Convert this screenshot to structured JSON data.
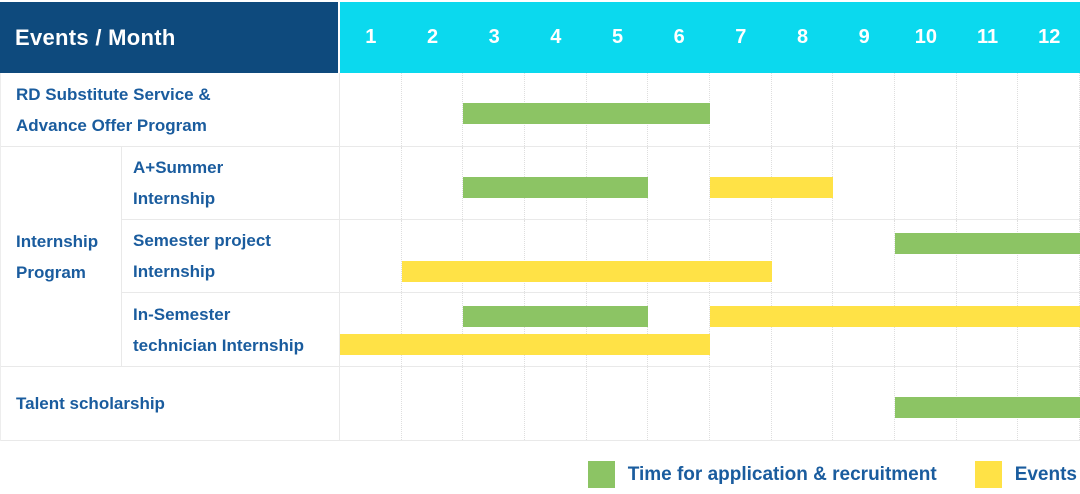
{
  "header": {
    "corner_label": "Events / Month",
    "months": [
      "1",
      "2",
      "3",
      "4",
      "5",
      "6",
      "7",
      "8",
      "9",
      "10",
      "11",
      "12"
    ]
  },
  "colors": {
    "header_navy": "#0E4A7D",
    "header_cyan": "#0BD9EE",
    "application_green": "#8CC464",
    "event_yellow": "#FFE246",
    "label_blue": "#1A5C9E",
    "grid_line": "#E9E9E9"
  },
  "legend": {
    "items": [
      {
        "swatch": "application_green",
        "label": "Time for application & recruitment"
      },
      {
        "swatch": "event_yellow",
        "label": "Events"
      }
    ]
  },
  "chart_data": {
    "type": "gantt",
    "x_unit": "month",
    "x_ticks": [
      1,
      2,
      3,
      4,
      5,
      6,
      7,
      8,
      9,
      10,
      11,
      12
    ],
    "x_range": [
      1,
      12
    ],
    "grid": true,
    "legend_position": "bottom-right",
    "bar_kinds": {
      "application": "Time for application & recruitment",
      "event": "Events"
    },
    "group_label_lines": [
      "Internship",
      "Program"
    ],
    "rows": [
      {
        "label_lines": [
          "RD Substitute Service &",
          "Advance Offer Program"
        ],
        "group": null,
        "bars": [
          {
            "kind": "application",
            "start_month": 3,
            "end_month": 6,
            "lane": "mid"
          }
        ]
      },
      {
        "label_lines": [
          "A+Summer",
          "Internship"
        ],
        "group": "Internship Program",
        "bars": [
          {
            "kind": "application",
            "start_month": 3,
            "end_month": 5,
            "lane": "mid"
          },
          {
            "kind": "event",
            "start_month": 7,
            "end_month": 8,
            "lane": "mid"
          }
        ]
      },
      {
        "label_lines": [
          "Semester project",
          "Internship"
        ],
        "group": "Internship Program",
        "bars": [
          {
            "kind": "application",
            "start_month": 10,
            "end_month": 12,
            "lane": "top"
          },
          {
            "kind": "event",
            "start_month": 2,
            "end_month": 7,
            "lane": "bottom"
          }
        ]
      },
      {
        "label_lines": [
          "In-Semester",
          "technician Internship"
        ],
        "group": "Internship Program",
        "bars": [
          {
            "kind": "application",
            "start_month": 3,
            "end_month": 5,
            "lane": "top"
          },
          {
            "kind": "event",
            "start_month": 7,
            "end_month": 12,
            "lane": "top"
          },
          {
            "kind": "event",
            "start_month": 1,
            "end_month": 6,
            "lane": "bottom"
          }
        ]
      },
      {
        "label_lines": [
          "Talent scholarship"
        ],
        "group": null,
        "bars": [
          {
            "kind": "application",
            "start_month": 10,
            "end_month": 12,
            "lane": "mid"
          }
        ]
      }
    ]
  }
}
